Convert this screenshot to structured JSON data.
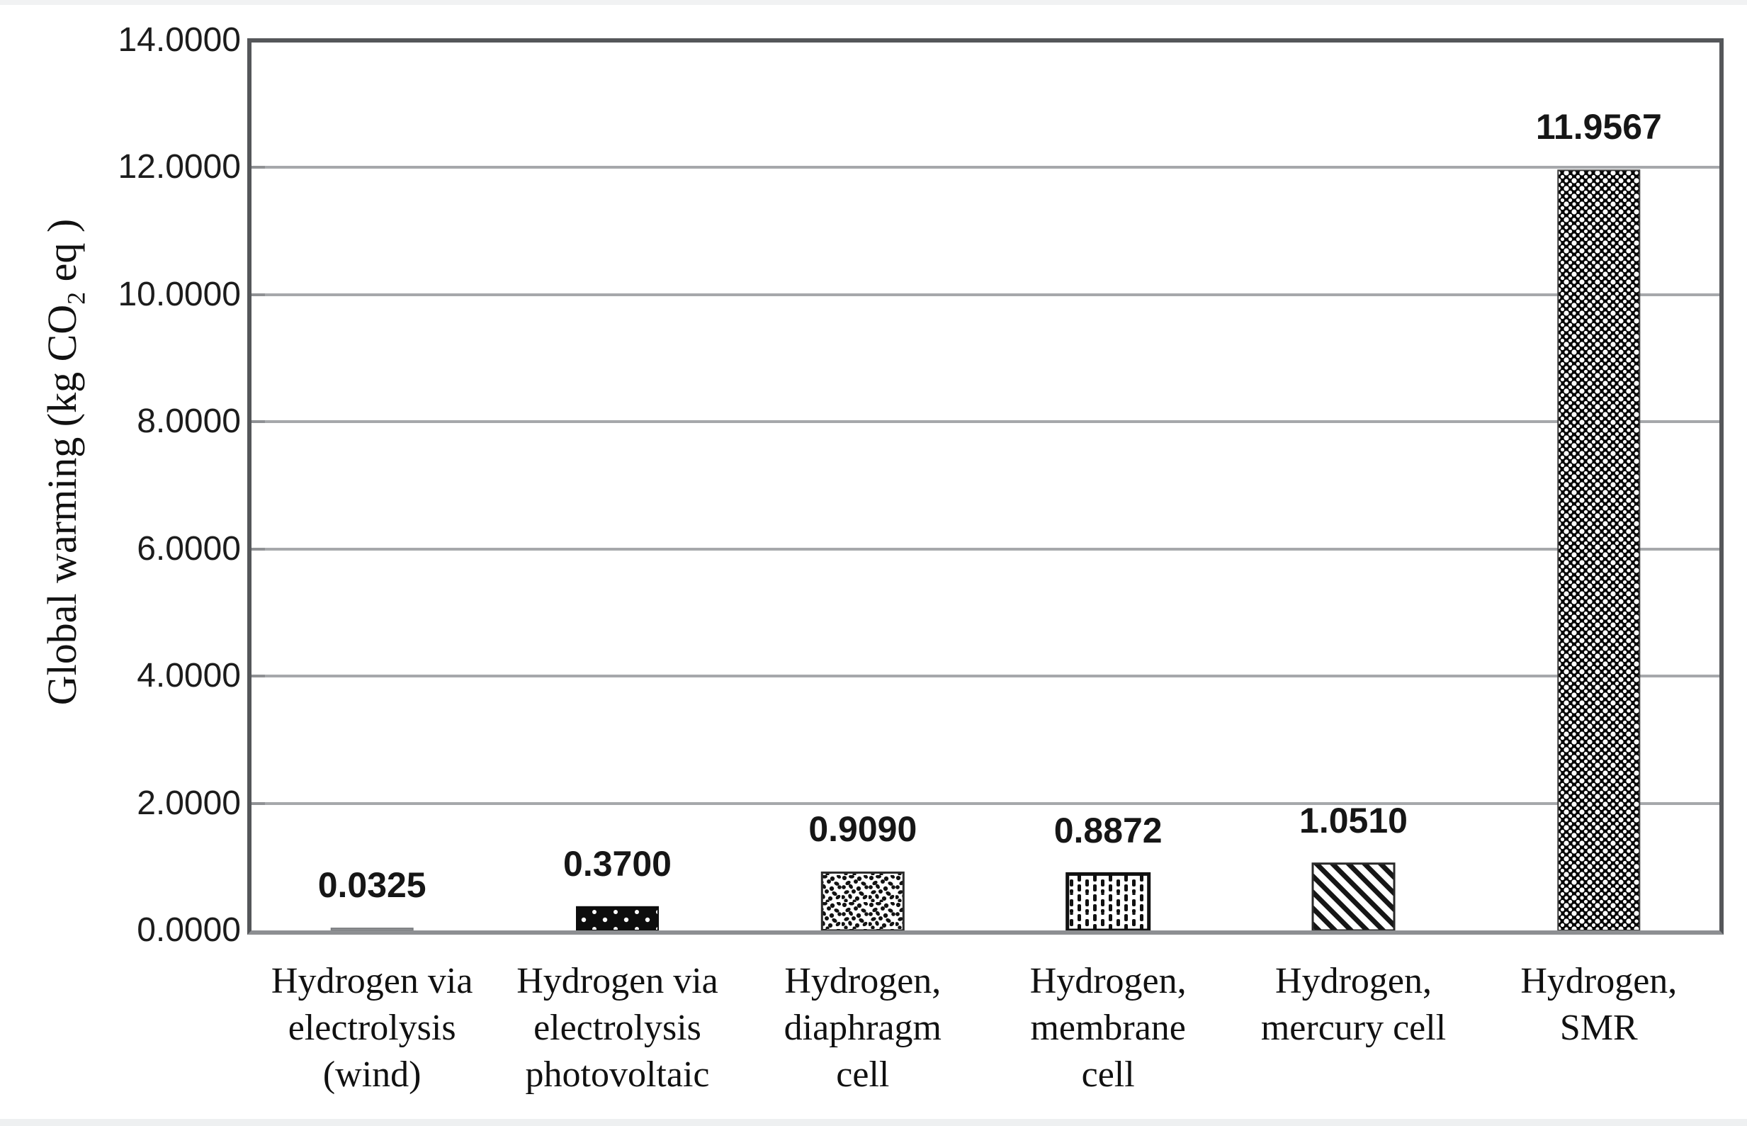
{
  "figure": {
    "background": "#ffffff"
  },
  "chart_data": {
    "type": "bar",
    "title": "",
    "xlabel": "",
    "ylabel": "Global warming (kg CO2 eq )",
    "ylabel_parts": {
      "pre": "Global warming (kg CO",
      "sub": "2",
      "post": " eq )"
    },
    "categories": [
      "Hydrogen via electrolysis (wind)",
      "Hydrogen via electrolysis photovoltaic",
      "Hydrogen, diaphragm cell",
      "Hydrogen, membrane cell",
      "Hydrogen, mercury cell",
      "Hydrogen, SMR"
    ],
    "category_lines": [
      [
        "Hydrogen via",
        "electrolysis",
        "(wind)"
      ],
      [
        "Hydrogen via",
        "electrolysis",
        "photovoltaic"
      ],
      [
        "Hydrogen,",
        "diaphragm",
        "cell"
      ],
      [
        "Hydrogen,",
        "membrane",
        "cell"
      ],
      [
        "Hydrogen,",
        "mercury cell"
      ],
      [
        "Hydrogen,",
        "SMR"
      ]
    ],
    "values": [
      0.0325,
      0.37,
      0.909,
      0.8872,
      1.051,
      11.9567
    ],
    "bar_labels": [
      "0.0325",
      "0.3700",
      "0.9090",
      "0.8872",
      "1.0510",
      "11.9567"
    ],
    "bar_patterns": [
      "solid-gray",
      "black-white-dots",
      "speckle",
      "vertical-dashes",
      "diagonal-stripes",
      "dotted-diamond"
    ],
    "ylim": [
      0,
      14
    ],
    "ytick_step": 2,
    "yticks_top_to_bottom": [
      "14.0000",
      "12.0000",
      "10.0000",
      "8.0000",
      "6.0000",
      "4.0000",
      "2.0000",
      "0.0000"
    ],
    "grid": true,
    "legend_position": "none",
    "colors": {
      "bar_ink": "#0d0d0d",
      "bar_paper": "#ffffff",
      "wind_bar_fill": "#97999c",
      "wind_bar_stroke": "#7c7e81",
      "axis_box": "#55575a",
      "x_axis_line": "#8d8f92",
      "gridline": "#a6a8ab",
      "text": "#1c1c1c"
    }
  }
}
